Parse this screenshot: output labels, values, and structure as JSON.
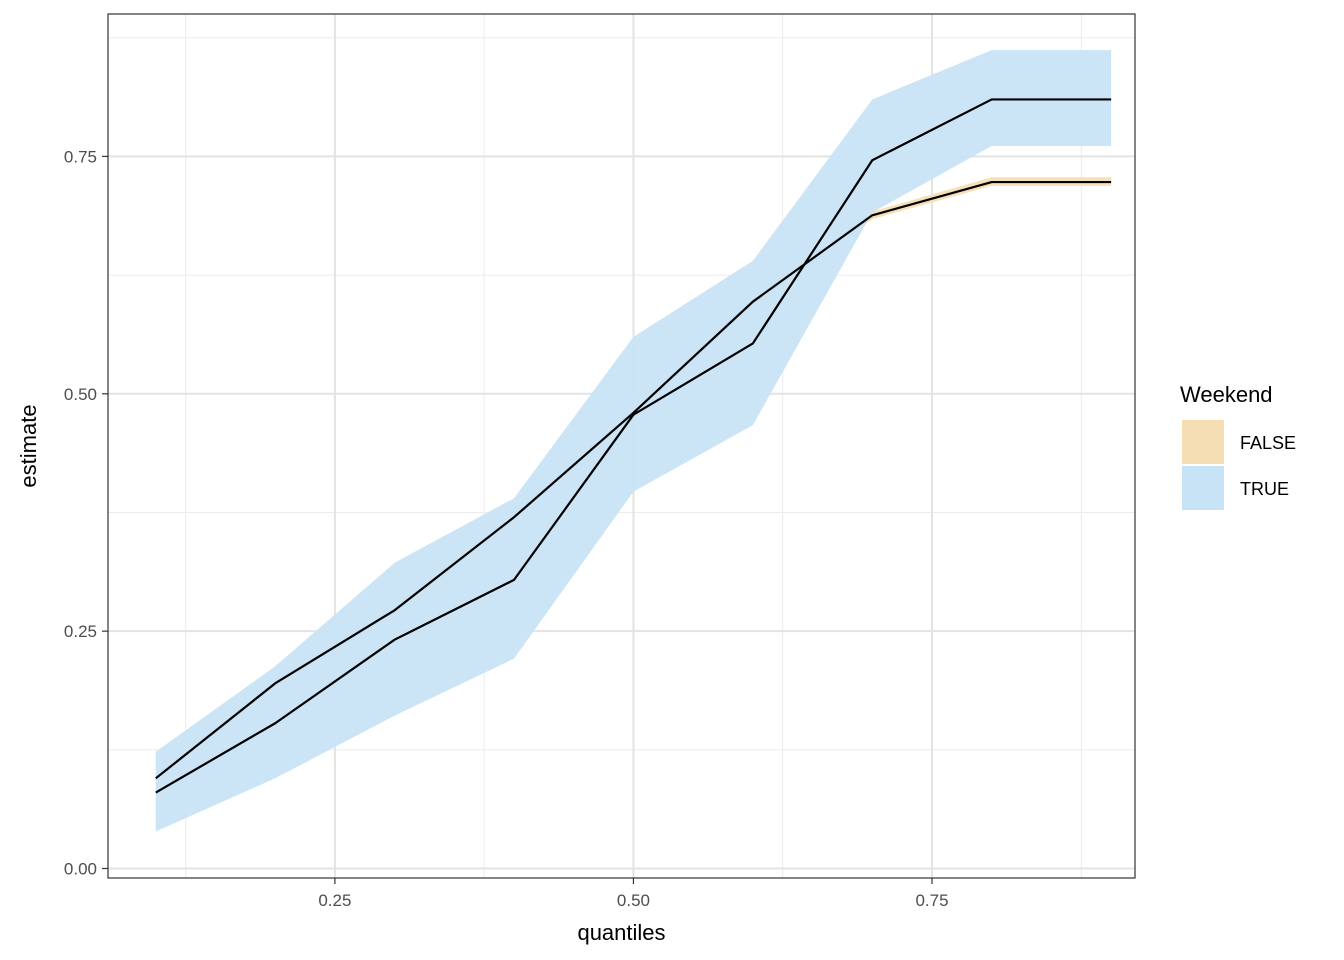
{
  "chart_data": {
    "type": "line",
    "xlabel": "quantiles",
    "ylabel": "estimate",
    "xlim": [
      0.06,
      0.92
    ],
    "ylim": [
      -0.01,
      0.9
    ],
    "x_ticks": [
      0.25,
      0.5,
      0.75
    ],
    "x_tick_labels": [
      "0.25",
      "0.50",
      "0.75"
    ],
    "y_ticks": [
      0.0,
      0.25,
      0.5,
      0.75
    ],
    "y_tick_labels": [
      "0.00",
      "0.25",
      "0.50",
      "0.75"
    ],
    "grid": true,
    "legend": {
      "title": "Weekend",
      "placement": "right"
    },
    "x": [
      0.1,
      0.2,
      0.3,
      0.4,
      0.5,
      0.6,
      0.7,
      0.8,
      0.9
    ],
    "series": [
      {
        "name": "FALSE",
        "fill_color": "#F5DEB3",
        "line_color": "#000000",
        "values": [
          0.095,
          0.195,
          0.272,
          0.37,
          0.48,
          0.597,
          0.688,
          0.723,
          0.723
        ],
        "lower": [
          0.093,
          0.192,
          0.268,
          0.366,
          0.476,
          0.593,
          0.684,
          0.719,
          0.719
        ],
        "upper": [
          0.097,
          0.198,
          0.276,
          0.374,
          0.484,
          0.601,
          0.692,
          0.728,
          0.728
        ]
      },
      {
        "name": "TRUE",
        "fill_color": "#C8E3F5",
        "line_color": "#000000",
        "values": [
          0.08,
          0.153,
          0.241,
          0.304,
          0.478,
          0.553,
          0.746,
          0.81,
          0.81
        ],
        "lower": [
          0.039,
          0.095,
          0.161,
          0.221,
          0.397,
          0.467,
          0.691,
          0.761,
          0.761
        ],
        "upper": [
          0.123,
          0.213,
          0.322,
          0.39,
          0.56,
          0.64,
          0.81,
          0.862,
          0.862
        ]
      }
    ]
  }
}
